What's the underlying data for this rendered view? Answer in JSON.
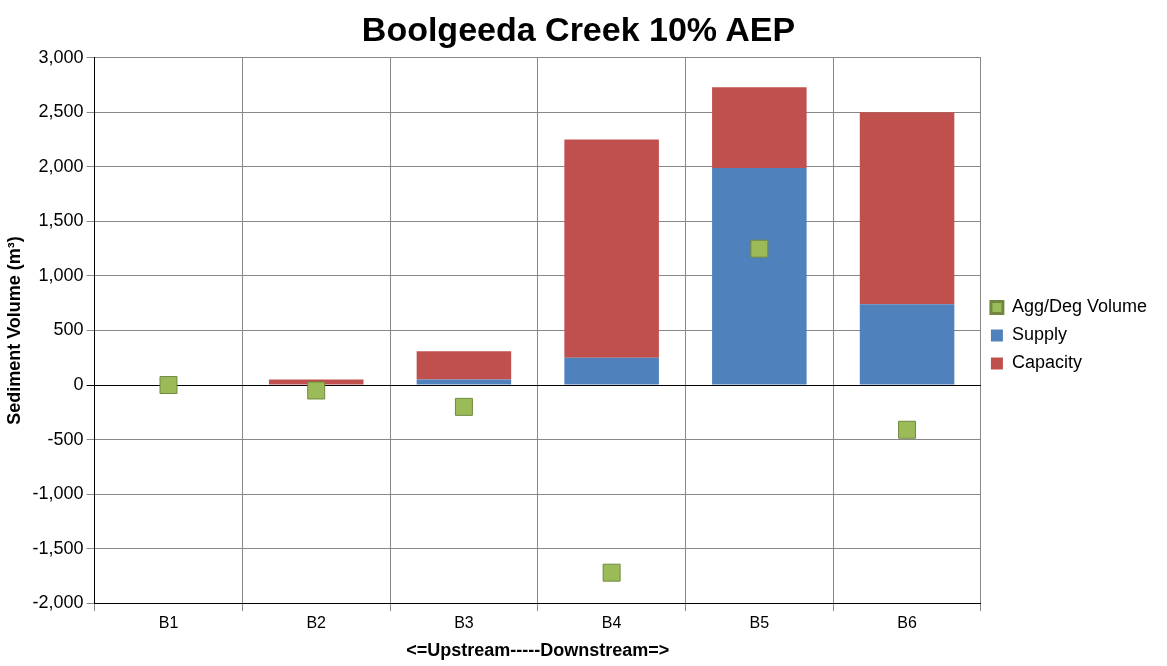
{
  "chart_data": {
    "type": "bar",
    "title": "Boolgeeda Creek 10% AEP",
    "xlabel": "<=Upstream-----Downstream=>",
    "ylabel": "Sediment Volume (m³)",
    "categories": [
      "B1",
      "B2",
      "B3",
      "B4",
      "B5",
      "B6"
    ],
    "stacked": true,
    "series": [
      {
        "name": "Supply",
        "color": "#4f81bd",
        "values": [
          0,
          0,
          50,
          250,
          1990,
          740
        ]
      },
      {
        "name": "Capacity",
        "color": "#c0504d",
        "values": [
          0,
          50,
          260,
          2000,
          740,
          1760
        ]
      },
      {
        "name": "Agg/Deg Volume",
        "type": "scatter",
        "color": "#9bbb59",
        "marker": "square",
        "x": [
          "B1",
          "B2",
          "B3",
          "B4",
          "B5",
          "B6"
        ],
        "values": [
          0,
          -50,
          -200,
          -1720,
          1250,
          -410
        ]
      }
    ],
    "ylim": [
      -2000,
      3000
    ],
    "yticks": [
      {
        "value": -2000,
        "label": "-2,000"
      },
      {
        "value": -1500,
        "label": "-1,500"
      },
      {
        "value": -1000,
        "label": "-1,000"
      },
      -500,
      0,
      500,
      {
        "value": 1000,
        "label": "1,000"
      },
      {
        "value": 1500,
        "label": "1,500"
      },
      {
        "value": 2000,
        "label": "2,000"
      },
      {
        "value": 2500,
        "label": "2,500"
      },
      {
        "value": 3000,
        "label": "3,000"
      }
    ],
    "grid": true,
    "legend": "right"
  }
}
